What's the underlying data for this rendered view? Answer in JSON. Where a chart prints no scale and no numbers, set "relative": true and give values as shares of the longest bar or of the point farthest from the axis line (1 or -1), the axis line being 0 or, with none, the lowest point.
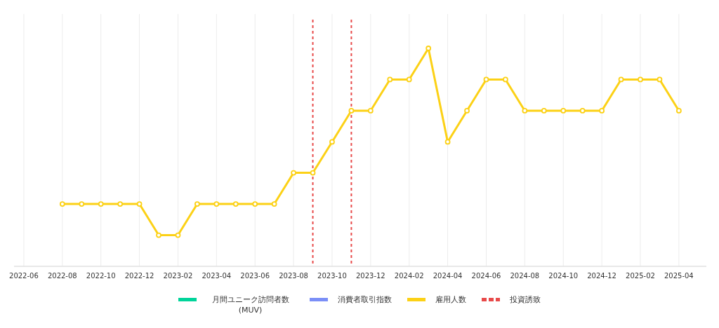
{
  "chart_data": {
    "type": "line",
    "relative": true,
    "grid": "x",
    "legend": "bottom",
    "marker": "circle",
    "line_style": "solid",
    "x": [
      "2022-08",
      "2022-09",
      "2022-10",
      "2022-11",
      "2022-12",
      "2023-01",
      "2023-02",
      "2023-03",
      "2023-04",
      "2023-05",
      "2023-06",
      "2023-07",
      "2023-08",
      "2023-09",
      "2023-10",
      "2023-11",
      "2023-12",
      "2024-01",
      "2024-02",
      "2024-03",
      "2024-04",
      "2024-05",
      "2024-06",
      "2024-07",
      "2024-08",
      "2024-09",
      "2024-10",
      "2024-11",
      "2024-12",
      "2025-01",
      "2025-02",
      "2025-03",
      "2025-04"
    ],
    "xlim": [
      "2022-05-16",
      "2025-05-14"
    ],
    "xticks": [
      "2022-06",
      "2022-08",
      "2022-10",
      "2022-12",
      "2023-02",
      "2023-04",
      "2023-06",
      "2023-08",
      "2023-10",
      "2023-12",
      "2024-02",
      "2024-04",
      "2024-06",
      "2024-08",
      "2024-10",
      "2024-12",
      "2025-02",
      "2025-04"
    ],
    "series": [
      {
        "name": "月間ユニーク訪問者数 (MUV)",
        "color": "#00d49a",
        "values": [
          null,
          null,
          null,
          null,
          null,
          null,
          null,
          null,
          null,
          null,
          null,
          null,
          null,
          null,
          null,
          null,
          null,
          null,
          null,
          null,
          null,
          null,
          null,
          null,
          null,
          null,
          null,
          null,
          null,
          null,
          null,
          null,
          null
        ]
      },
      {
        "name": "消費者取引指数",
        "color": "#7b8ff7",
        "values": [
          null,
          null,
          null,
          null,
          null,
          null,
          null,
          null,
          null,
          null,
          null,
          null,
          null,
          null,
          null,
          null,
          null,
          null,
          null,
          null,
          null,
          null,
          null,
          null,
          null,
          null,
          null,
          null,
          null,
          null,
          null,
          null,
          null
        ]
      },
      {
        "name": "雇用人数",
        "color": "#fcd116",
        "values": [
          0.286,
          0.286,
          0.286,
          0.286,
          0.286,
          0.143,
          0.143,
          0.286,
          0.286,
          0.286,
          0.286,
          0.286,
          0.429,
          0.429,
          0.571,
          0.714,
          0.714,
          0.857,
          0.857,
          1,
          0.571,
          0.714,
          0.857,
          0.857,
          0.714,
          0.714,
          0.714,
          0.714,
          0.714,
          0.857,
          0.857,
          0.857,
          0.714
        ]
      }
    ],
    "ref_lines": [
      {
        "axis": "x",
        "value": "2023-09",
        "label": "投資誘致",
        "color": "#e84a4a",
        "line_style": "dashed"
      },
      {
        "axis": "x",
        "value": "2023-11",
        "color": "#e84a4a",
        "line_style": "dashed"
      }
    ]
  }
}
